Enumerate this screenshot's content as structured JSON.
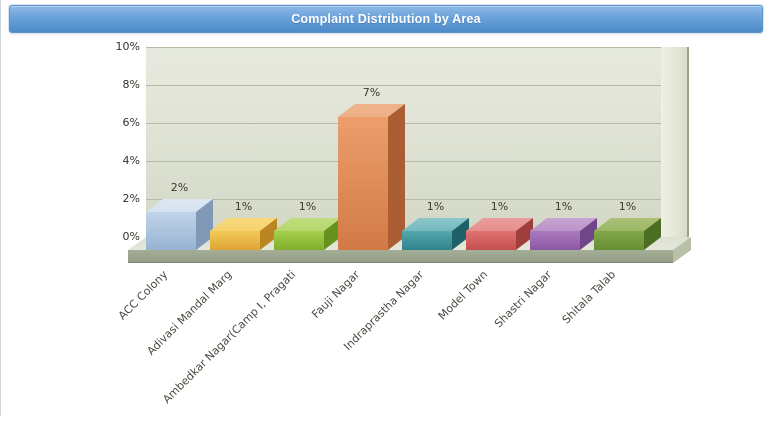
{
  "chart_data": {
    "type": "bar",
    "title": "Complaint Distribution by Area",
    "categories": [
      "ACC Colony",
      "Adivasi Mandal Marg",
      "Ambedkar Nagar(Camp I, Pragati",
      "Fauji Nagar",
      "Indraprastha Nagar",
      "Model Town",
      "Shastri Nagar",
      "Shitala Talab"
    ],
    "values": [
      2,
      1,
      1,
      7,
      1,
      1,
      1,
      1
    ],
    "value_labels": [
      "2%",
      "1%",
      "1%",
      "7%",
      "1%",
      "1%",
      "1%",
      "1%"
    ],
    "y_ticks": [
      "10%",
      "8%",
      "6%",
      "4%",
      "2%",
      "0%"
    ],
    "ylim": [
      0,
      10
    ],
    "xlabel": "",
    "ylabel": "",
    "grid": true,
    "legend": false,
    "style_3d": true,
    "bar_colors": [
      {
        "top": "#dce7f3",
        "front_light": "#c2d5ea",
        "front_dark": "#96b3d3",
        "side": "#8099b6"
      },
      {
        "top": "#f7d97b",
        "front_light": "#f2c959",
        "front_dark": "#dfa434",
        "side": "#bb8522"
      },
      {
        "top": "#bfdd7f",
        "front_light": "#a6cf4f",
        "front_dark": "#7fae2b",
        "side": "#66911d"
      },
      {
        "top": "#eeb28b",
        "front_light": "#ec9e6c",
        "front_dark": "#d17a47",
        "side": "#ab5d33"
      },
      {
        "top": "#8ac7cb",
        "front_light": "#55a6ad",
        "front_dark": "#2e838c",
        "side": "#1f6168"
      },
      {
        "top": "#eb9e9e",
        "front_light": "#e07272",
        "front_dark": "#c64e4e",
        "side": "#a03d3d"
      },
      {
        "top": "#c6a4d2",
        "front_light": "#ab7abd",
        "front_dark": "#8d58a4",
        "side": "#704589"
      },
      {
        "top": "#abc277",
        "front_light": "#83a74b",
        "front_dark": "#668e33",
        "side": "#4c6e23"
      }
    ],
    "accent_colors": {
      "titlebar_blue": "#5e96d2",
      "wall_green_gray": "#dde1d2",
      "floor_gray_green": "#a9b29a"
    }
  }
}
